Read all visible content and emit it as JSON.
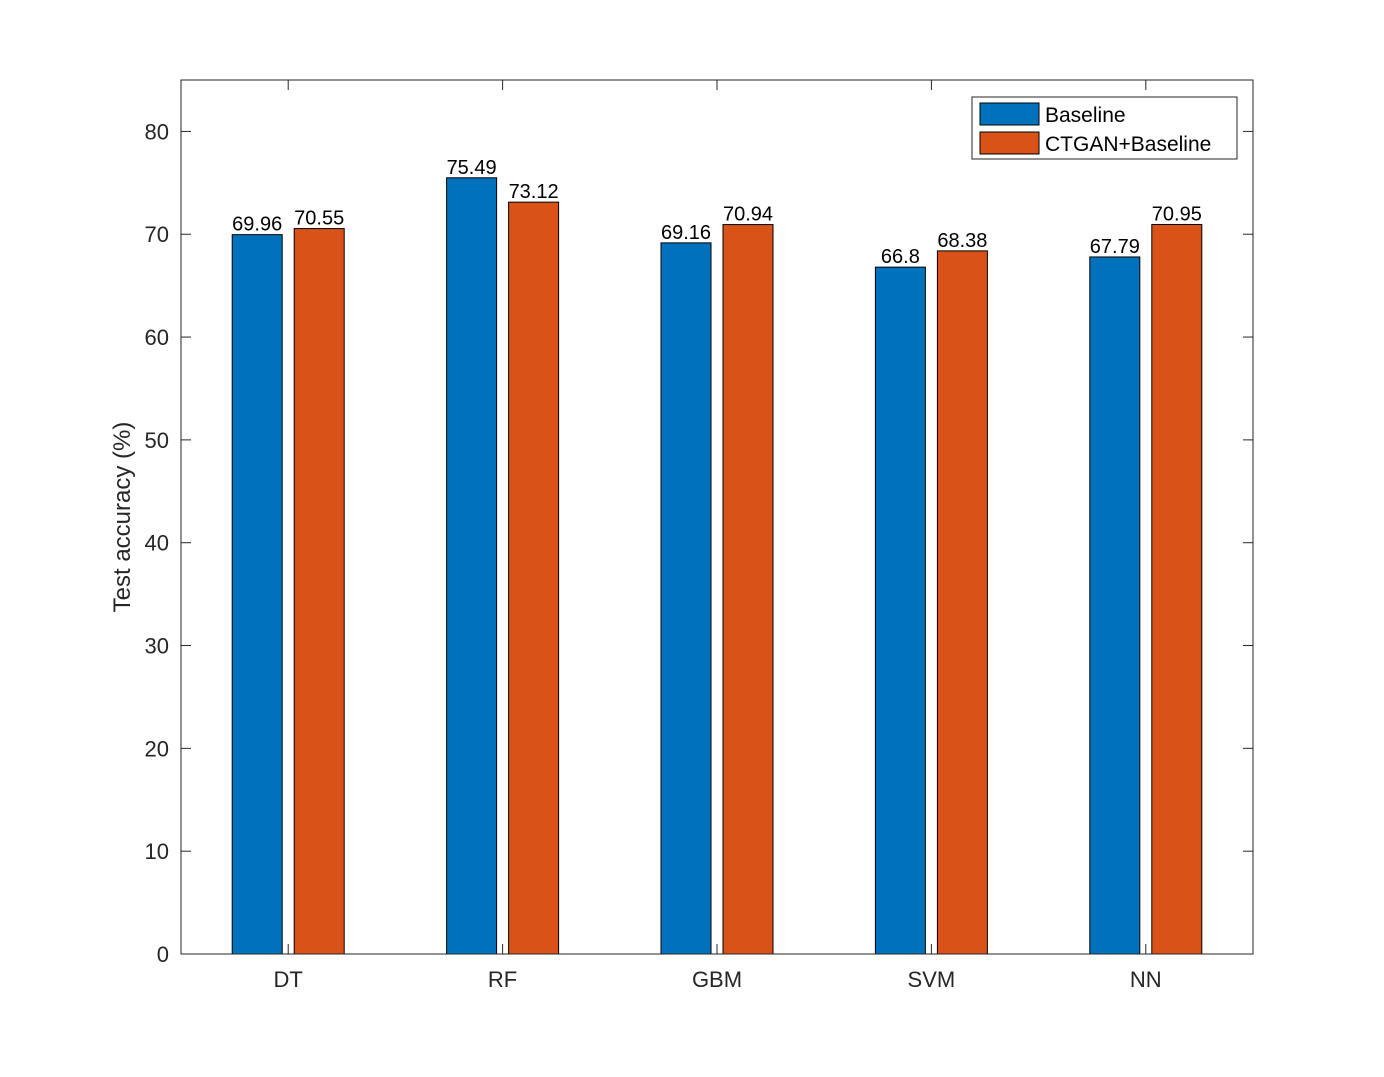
{
  "chart_data": {
    "type": "bar",
    "categories": [
      "DT",
      "RF",
      "GBM",
      "SVM",
      "NN"
    ],
    "series": [
      {
        "name": "Baseline",
        "values": [
          69.96,
          75.49,
          69.16,
          66.8,
          67.79
        ],
        "labels": [
          "69.96",
          "75.49",
          "69.16",
          "66.8",
          "67.79"
        ],
        "color": "#0072BD"
      },
      {
        "name": "CTGAN+Baseline",
        "values": [
          70.55,
          73.12,
          70.94,
          68.38,
          70.95
        ],
        "labels": [
          "70.55",
          "73.12",
          "70.94",
          "68.38",
          "70.95"
        ],
        "color": "#D95319"
      }
    ],
    "title": "",
    "xlabel": "",
    "ylabel": "Test accuracy (%)",
    "ylim": [
      0,
      85
    ],
    "yticks": [
      0,
      10,
      20,
      30,
      40,
      50,
      60,
      70,
      80
    ],
    "grid": false,
    "legend_position": "top-right"
  }
}
